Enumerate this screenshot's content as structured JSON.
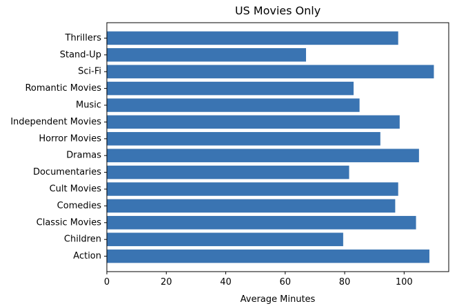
{
  "chart_data": {
    "type": "bar",
    "orientation": "horizontal",
    "title": "US Movies Only",
    "xlabel": "Average Minutes",
    "ylabel": "",
    "xlim": [
      0,
      115
    ],
    "xticks": [
      0,
      20,
      40,
      60,
      80,
      100
    ],
    "grid": false,
    "legend": "none",
    "bar_color": "#3a74b2",
    "categories": [
      "Action",
      "Children",
      "Classic Movies",
      "Comedies",
      "Cult Movies",
      "Documentaries",
      "Dramas",
      "Horror Movies",
      "Independent Movies",
      "Music",
      "Romantic Movies",
      "Sci-Fi",
      "Stand-Up",
      "Thrillers"
    ],
    "values": [
      108.5,
      79.5,
      104,
      97,
      98,
      81.5,
      105,
      92,
      98.5,
      85,
      83,
      110,
      67,
      98
    ]
  }
}
